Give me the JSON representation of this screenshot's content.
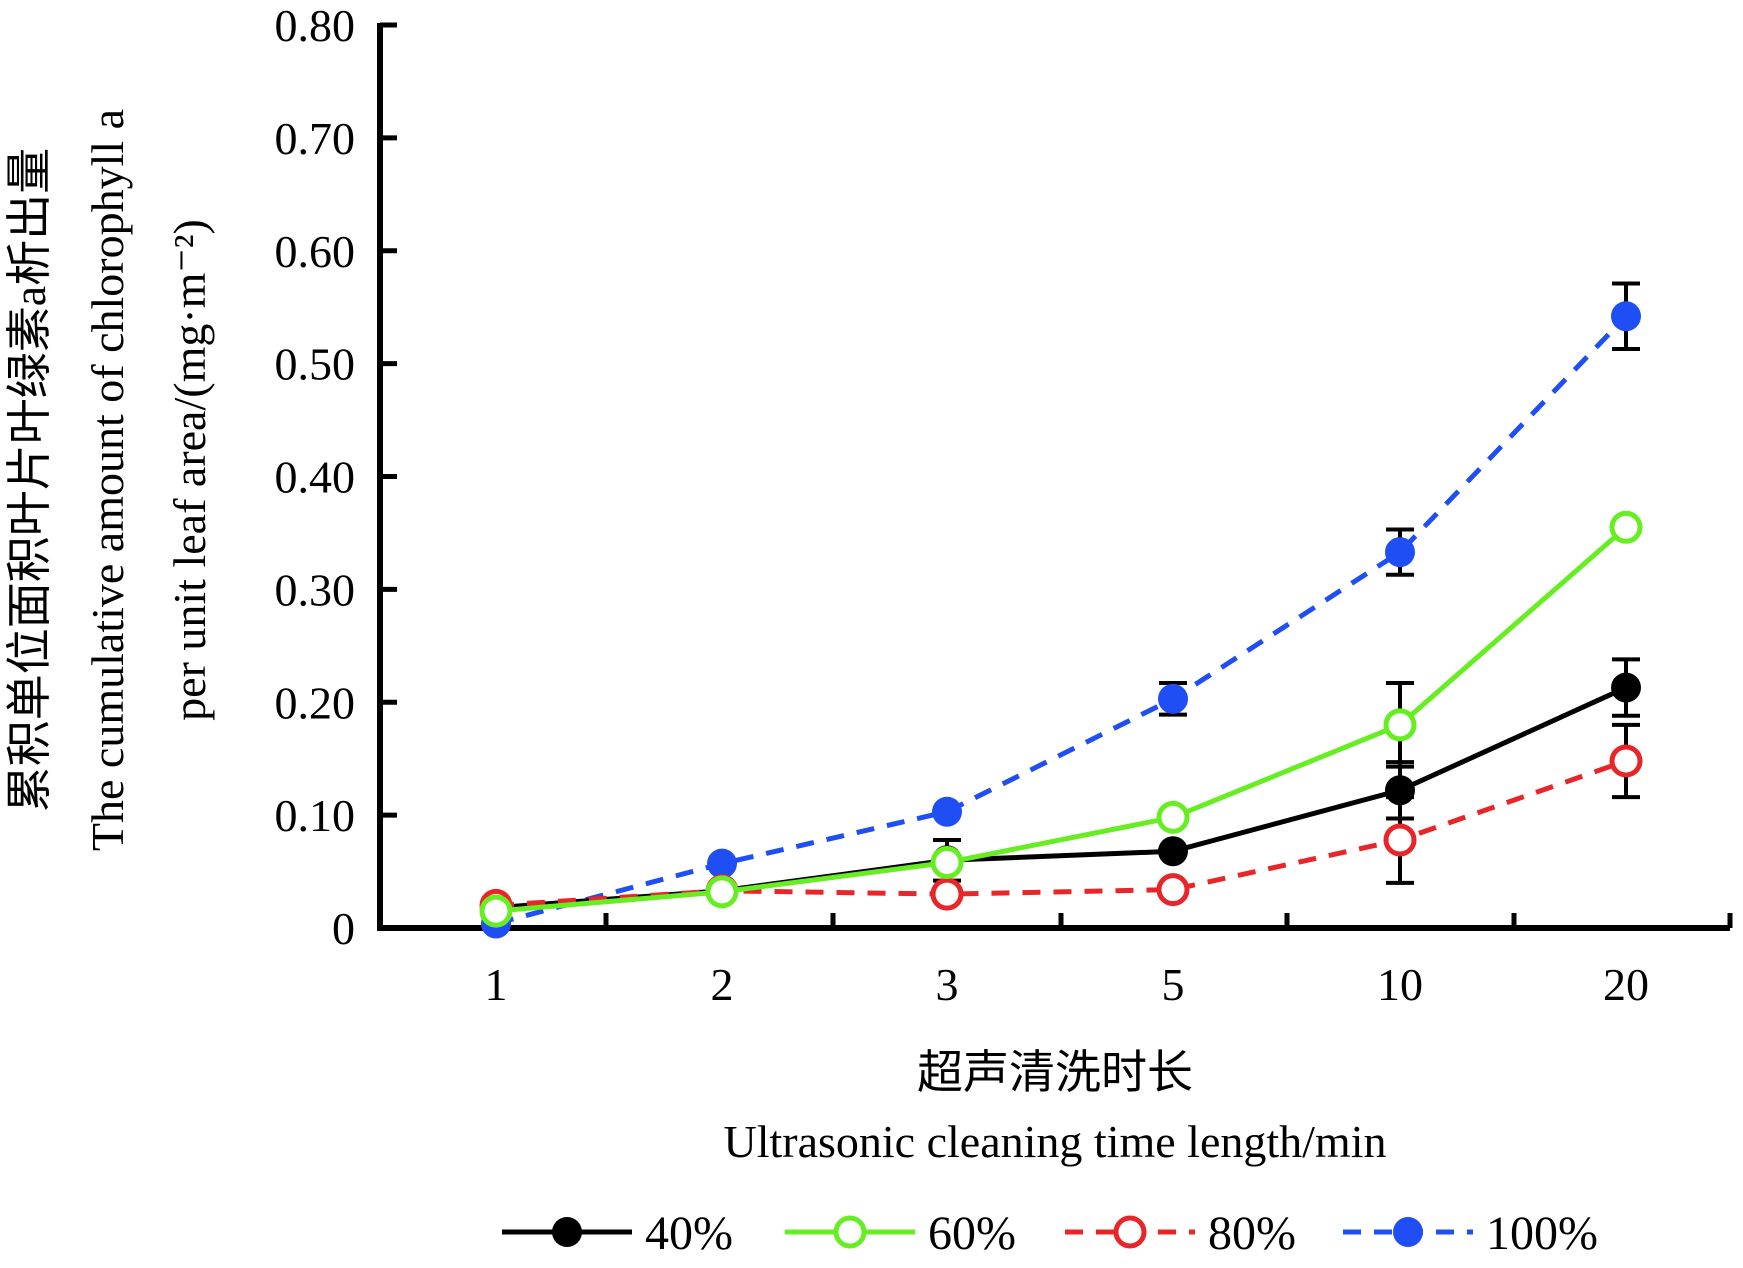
{
  "chart_data": {
    "type": "line",
    "xlabel_cn": "超声清洗时长",
    "xlabel_en": "Ultrasonic cleaning time length/min",
    "ylabel_cn": "累积单位面积叶片叶绿素a析出量",
    "ylabel_en_1": "The cumulative amount of chlorophyll a",
    "ylabel_en_2": "per unit leaf area/(mg·m⁻²)",
    "categories": [
      "1",
      "2",
      "3",
      "5",
      "10",
      "20"
    ],
    "ylim": [
      0,
      0.8
    ],
    "yticks": [
      "0",
      "0.10",
      "0.20",
      "0.30",
      "0.40",
      "0.50",
      "0.60",
      "0.70",
      "0.80"
    ],
    "legend_position": "bottom",
    "series": [
      {
        "name": "40%",
        "color": "#000000",
        "line": "solid",
        "marker": "filled",
        "values": [
          0.018,
          0.033,
          0.06,
          0.068,
          0.122,
          0.213
        ],
        "errors": [
          null,
          null,
          0.018,
          null,
          0.025,
          0.025
        ]
      },
      {
        "name": "60%",
        "color": "#66ee22",
        "line": "solid",
        "marker": "open",
        "values": [
          0.015,
          0.032,
          0.058,
          0.098,
          0.18,
          0.355
        ],
        "errors": [
          null,
          null,
          null,
          null,
          0.037,
          null
        ]
      },
      {
        "name": "80%",
        "color": "#e8262a",
        "line": "dashed",
        "marker": "open",
        "values": [
          0.02,
          0.033,
          0.03,
          0.034,
          0.078,
          0.148
        ],
        "errors": [
          null,
          null,
          null,
          null,
          0.038,
          0.032
        ]
      },
      {
        "name": "100%",
        "color": "#1f4ef5",
        "line": "dashed",
        "marker": "filled",
        "values": [
          0.004,
          0.057,
          0.103,
          0.203,
          0.333,
          0.542
        ],
        "errors": [
          null,
          null,
          null,
          0.014,
          0.02,
          0.029
        ]
      }
    ]
  }
}
